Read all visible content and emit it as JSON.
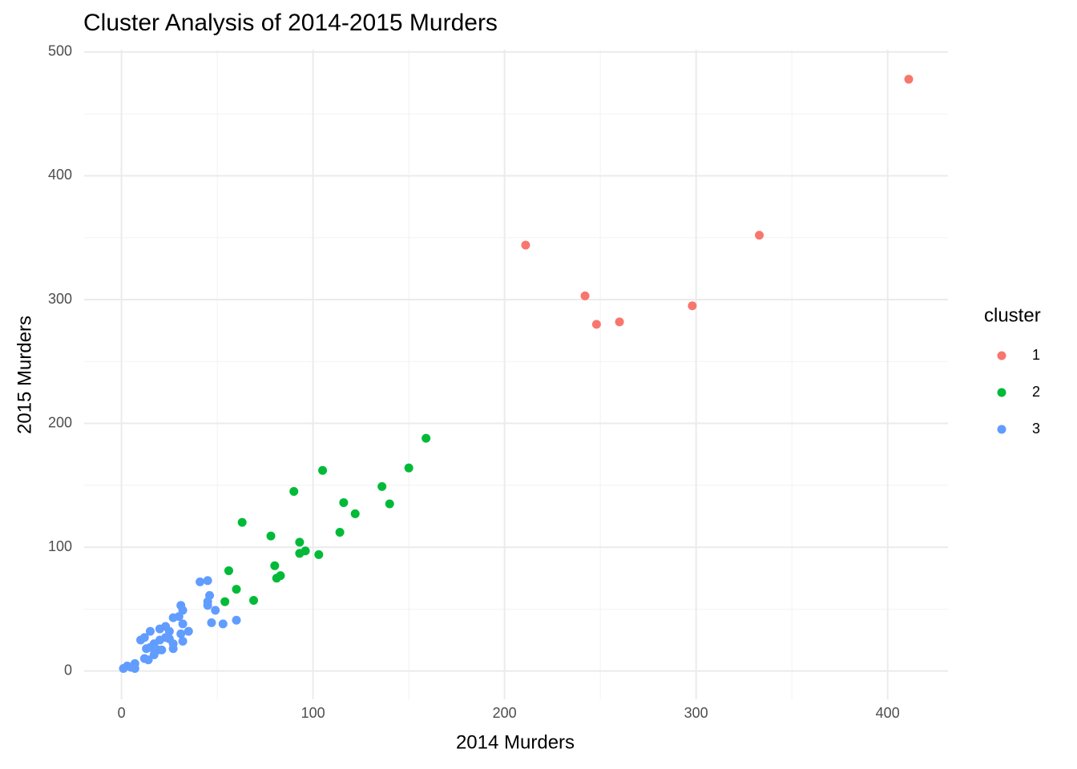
{
  "chart_data": {
    "type": "scatter",
    "title": "Cluster Analysis of 2014-2015 Murders",
    "x_label": "2014 Murders",
    "y_label": "2015 Murders",
    "legend_title": "cluster",
    "xlim": [
      -19.5,
      431.5
    ],
    "ylim": [
      -22.9,
      501.9
    ],
    "xticks": [
      0,
      100,
      200,
      300,
      400
    ],
    "yticks": [
      0,
      100,
      200,
      300,
      400,
      500
    ],
    "x_minor_grid": [
      50,
      150,
      250,
      350
    ],
    "y_minor_grid": [
      50,
      150,
      250,
      350,
      450
    ],
    "grid": true,
    "legend_position": "right",
    "series": [
      {
        "name": "1",
        "color": "#F8766D",
        "x": [
          211,
          242,
          248,
          260,
          298,
          333,
          411
        ],
        "values": [
          344,
          303,
          280,
          282,
          295,
          352,
          478
        ]
      },
      {
        "name": "2",
        "color": "#00BA38",
        "x": [
          159,
          150,
          105,
          136,
          90,
          116,
          140,
          122,
          63,
          114,
          78,
          93,
          96,
          93,
          103,
          80,
          83,
          81,
          56,
          60,
          69,
          54
        ],
        "values": [
          188,
          164,
          162,
          149,
          145,
          136,
          135,
          127,
          120,
          112,
          109,
          104,
          97,
          95,
          94,
          85,
          77,
          75,
          81,
          66,
          57,
          56
        ]
      },
      {
        "name": "3",
        "color": "#619CFF",
        "x": [
          41,
          45,
          46,
          45,
          45,
          49,
          31,
          32,
          30,
          27,
          32,
          35,
          47,
          53,
          60,
          31,
          32,
          15,
          23,
          20,
          12,
          10,
          25,
          25,
          23,
          20,
          17,
          13,
          15,
          19,
          21,
          27,
          27,
          17,
          12,
          14,
          7,
          3,
          1,
          7,
          5
        ],
        "values": [
          72,
          73,
          61,
          56,
          53,
          49,
          53,
          49,
          44,
          43,
          38,
          32,
          39,
          38,
          41,
          30,
          24,
          32,
          36,
          34,
          27,
          25,
          32,
          26,
          27,
          25,
          22,
          18,
          19,
          17,
          17,
          18,
          22,
          13,
          10,
          9,
          6,
          4,
          2,
          2,
          3
        ]
      }
    ]
  }
}
